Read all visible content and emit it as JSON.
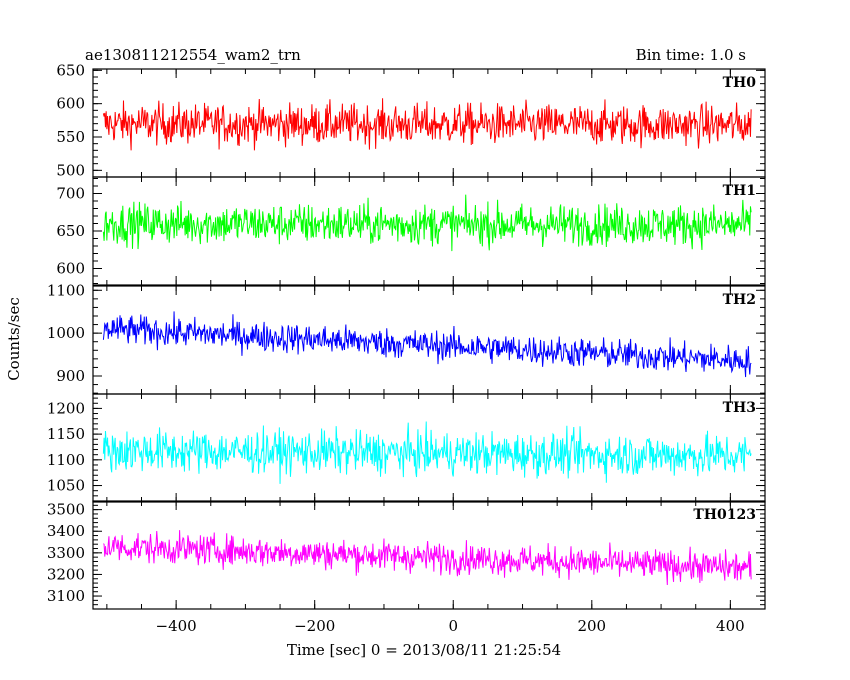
{
  "chart_data": {
    "type": "line",
    "title": "ae130811212554_wam2_trn",
    "subtitle": "Bin time: 1.0 s",
    "xlabel": "Time [sec] 0 = 2013/08/11 21:25:54",
    "ylabel": "Counts/sec",
    "x_range": [
      -505,
      430
    ],
    "xlim": [
      -520,
      450
    ],
    "x_ticks": [
      -400,
      -200,
      0,
      200,
      400
    ],
    "x_tick_labels": [
      "−400",
      "−200",
      "0",
      "200",
      "400"
    ],
    "panels": [
      {
        "name": "TH0",
        "color": "#ff0000",
        "ylim": [
          490,
          652
        ],
        "ticks": [
          500,
          550,
          600,
          650
        ],
        "mean_start": 570,
        "mean_end": 568,
        "spread": 28
      },
      {
        "name": "TH1",
        "color": "#00ff00",
        "ylim": [
          578,
          722
        ],
        "ticks": [
          600,
          650,
          700
        ],
        "mean_start": 660,
        "mean_end": 658,
        "spread": 25
      },
      {
        "name": "TH2",
        "color": "#0000ff",
        "ylim": [
          858,
          1110
        ],
        "ticks": [
          900,
          1000,
          1100
        ],
        "mean_start": 1010,
        "mean_end": 935,
        "spread": 32
      },
      {
        "name": "TH3",
        "color": "#00ffff",
        "ylim": [
          1018,
          1228
        ],
        "ticks": [
          1050,
          1100,
          1150,
          1200
        ],
        "mean_start": 1118,
        "mean_end": 1108,
        "spread": 38
      },
      {
        "name": "TH0123",
        "color": "#ff00ff",
        "ylim": [
          3040,
          3540
        ],
        "ticks": [
          3100,
          3200,
          3300,
          3400,
          3500
        ],
        "mean_start": 3330,
        "mean_end": 3230,
        "spread": 65
      }
    ]
  }
}
